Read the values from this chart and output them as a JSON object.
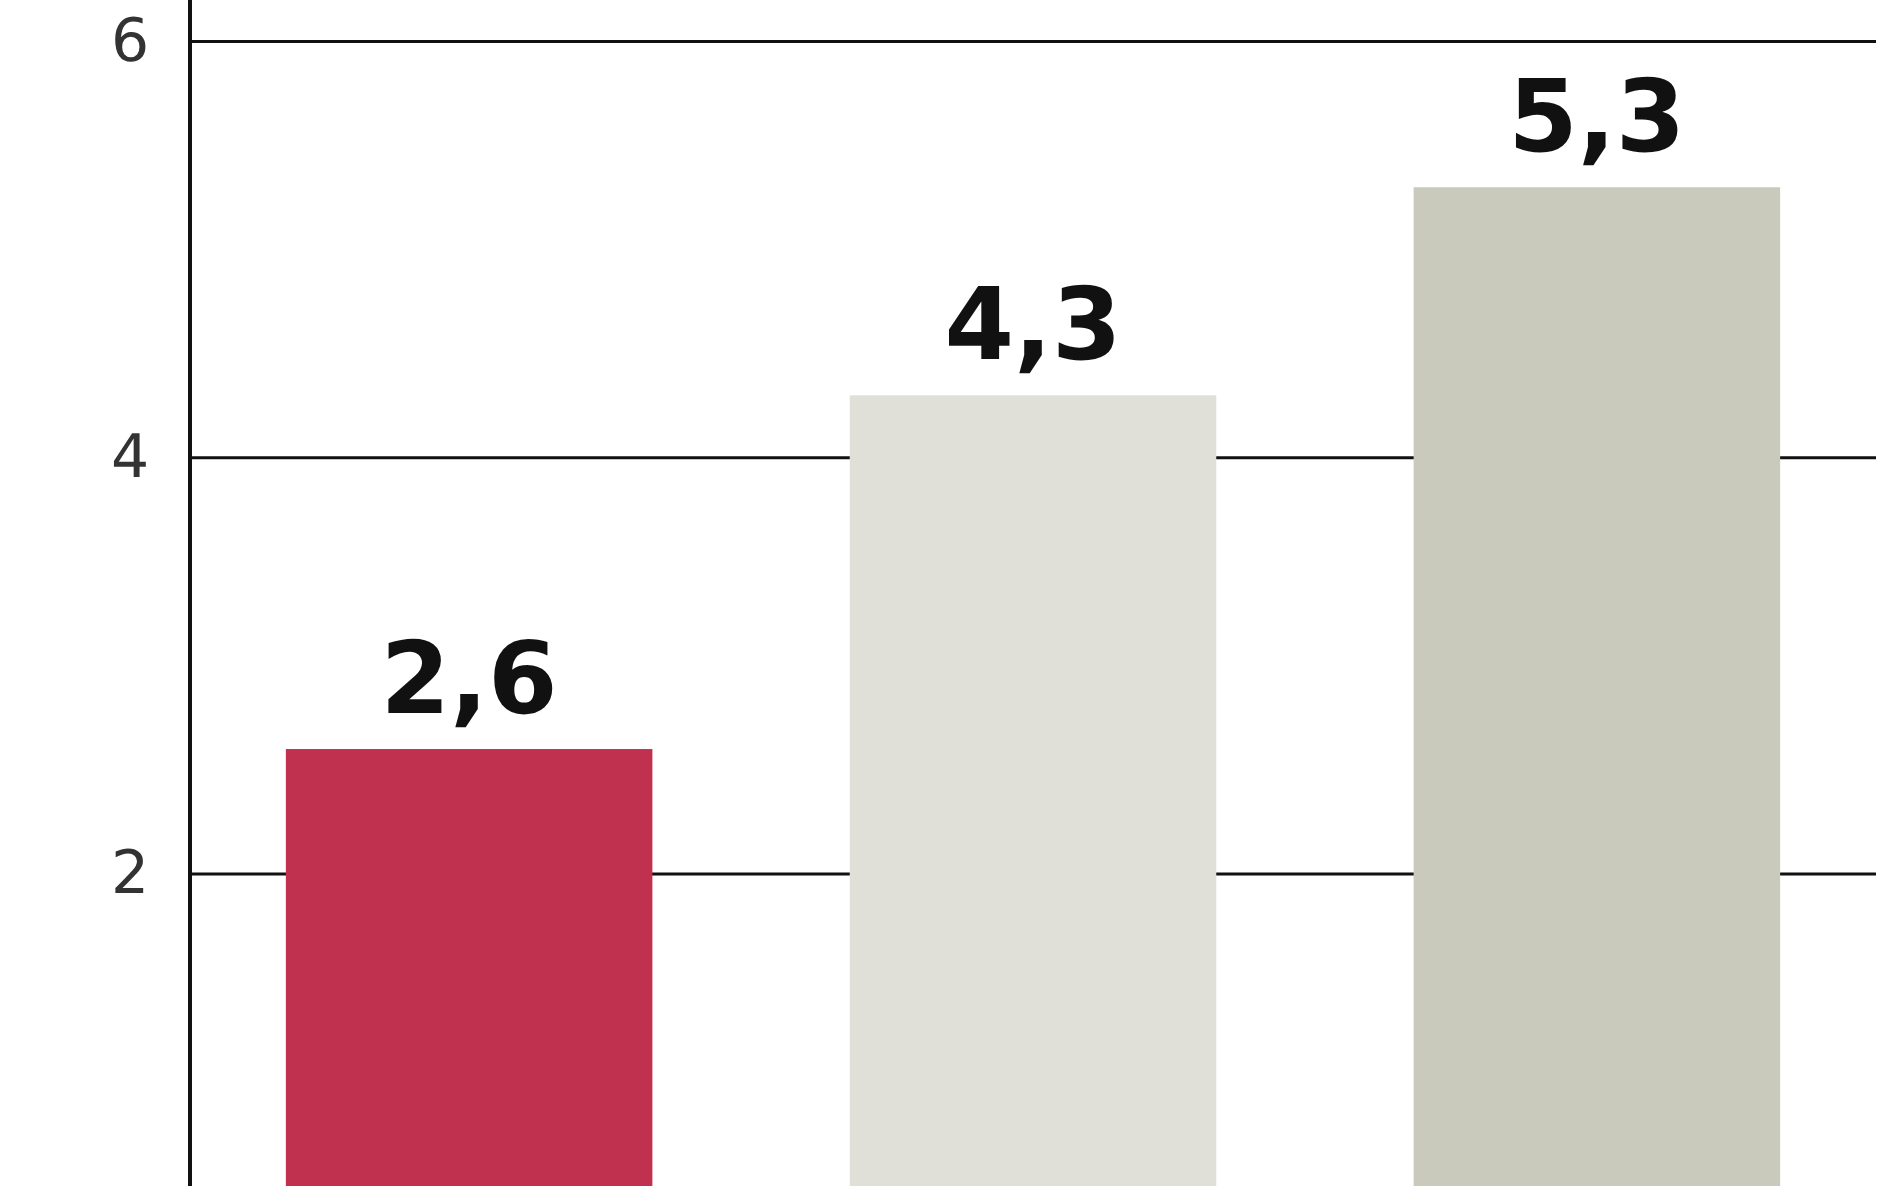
{
  "chart_data": {
    "type": "bar",
    "categories": [
      null,
      null,
      null
    ],
    "values": [
      2.6,
      4.3,
      5.3
    ],
    "colors": [
      "#c0304f",
      "#e0e0d8",
      "#cacabc"
    ],
    "value_labels": [
      "2,6",
      "4,3",
      "5,3"
    ],
    "ylim": [
      0.5,
      6.2
    ],
    "yticks": [
      2,
      4,
      6
    ],
    "grid": "y"
  }
}
